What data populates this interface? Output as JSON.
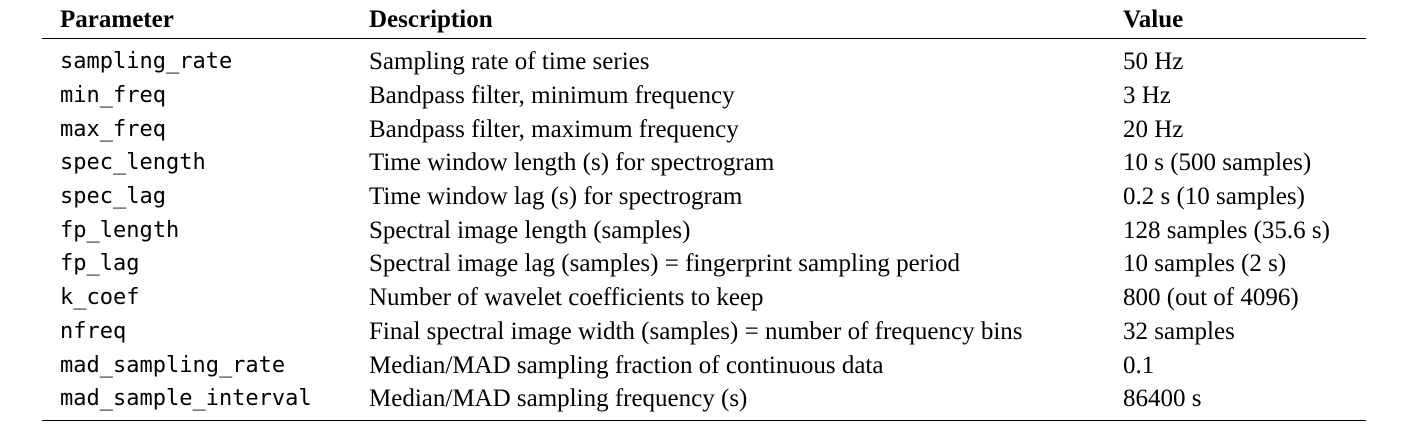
{
  "table": {
    "headers": {
      "parameter": "Parameter",
      "description": "Description",
      "value": "Value"
    },
    "rows": [
      {
        "parameter": "sampling_rate",
        "description": "Sampling rate of time series",
        "value": "50 Hz"
      },
      {
        "parameter": "min_freq",
        "description": "Bandpass filter, minimum frequency",
        "value": "3 Hz"
      },
      {
        "parameter": "max_freq",
        "description": "Bandpass filter, maximum frequency",
        "value": "20 Hz"
      },
      {
        "parameter": "spec_length",
        "description": "Time window length (s) for spectrogram",
        "value": "10 s (500 samples)"
      },
      {
        "parameter": "spec_lag",
        "description": "Time window lag (s) for spectrogram",
        "value": "0.2 s (10 samples)"
      },
      {
        "parameter": "fp_length",
        "description": "Spectral image length (samples)",
        "value": "128 samples (35.6 s)"
      },
      {
        "parameter": "fp_lag",
        "description": "Spectral image lag (samples) = fingerprint sampling period",
        "value": "10 samples (2 s)"
      },
      {
        "parameter": "k_coef",
        "description": "Number of wavelet coefficients to keep",
        "value": "800 (out of 4096)"
      },
      {
        "parameter": "nfreq",
        "description": "Final spectral image width (samples) = number of frequency bins",
        "value": "32 samples"
      },
      {
        "parameter": "mad_sampling_rate",
        "description": "Median/MAD sampling fraction of continuous data",
        "value": "0.1"
      },
      {
        "parameter": "mad_sample_interval",
        "description": "Median/MAD sampling frequency (s)",
        "value": "86400 s"
      }
    ]
  }
}
